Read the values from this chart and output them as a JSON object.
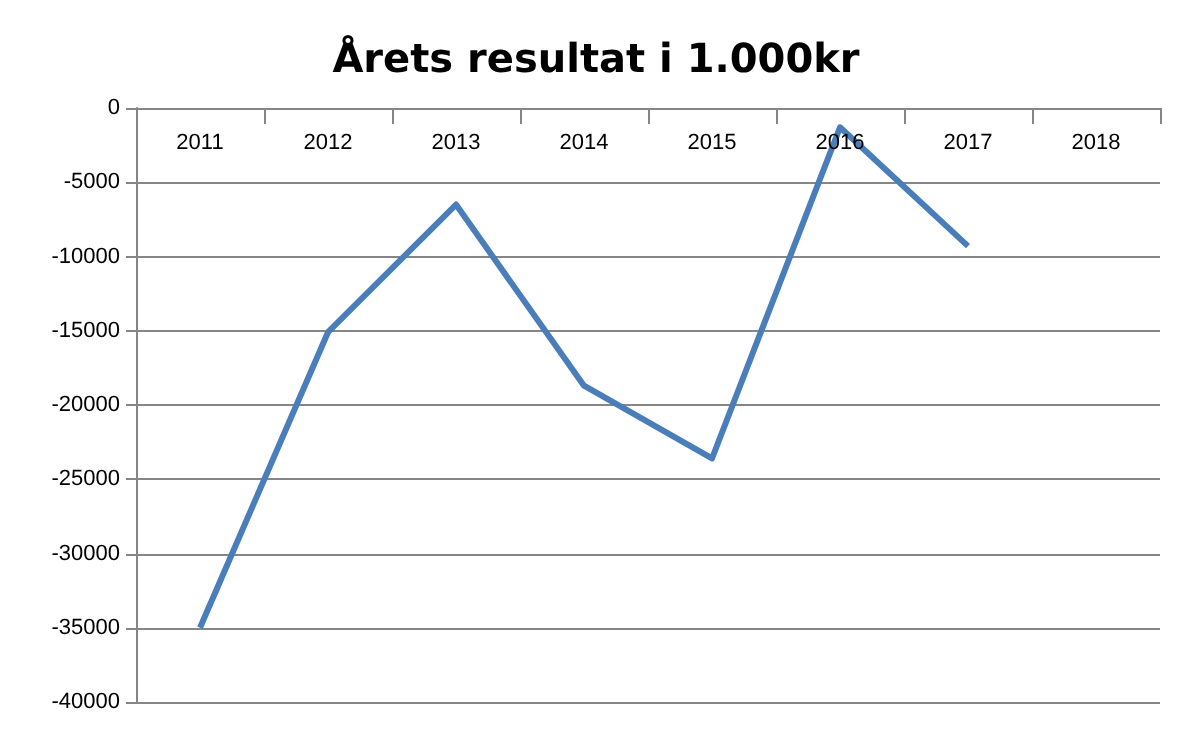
{
  "chart_data": {
    "type": "line",
    "title": "Årets resultat i 1.000kr",
    "categories": [
      "2011",
      "2012",
      "2013",
      "2014",
      "2015",
      "2016",
      "2017",
      "2018"
    ],
    "series": [
      {
        "color": "#4a7ebb",
        "values": [
          -35000,
          -15100,
          -6500,
          -18700,
          -23600,
          -1300,
          -9300,
          null
        ]
      }
    ],
    "ylim": [
      -40000,
      0
    ],
    "yticks": [
      -40000,
      -35000,
      -30000,
      -25000,
      -20000,
      -15000,
      -10000,
      -5000,
      0
    ],
    "grid": "y",
    "marker": "none"
  }
}
